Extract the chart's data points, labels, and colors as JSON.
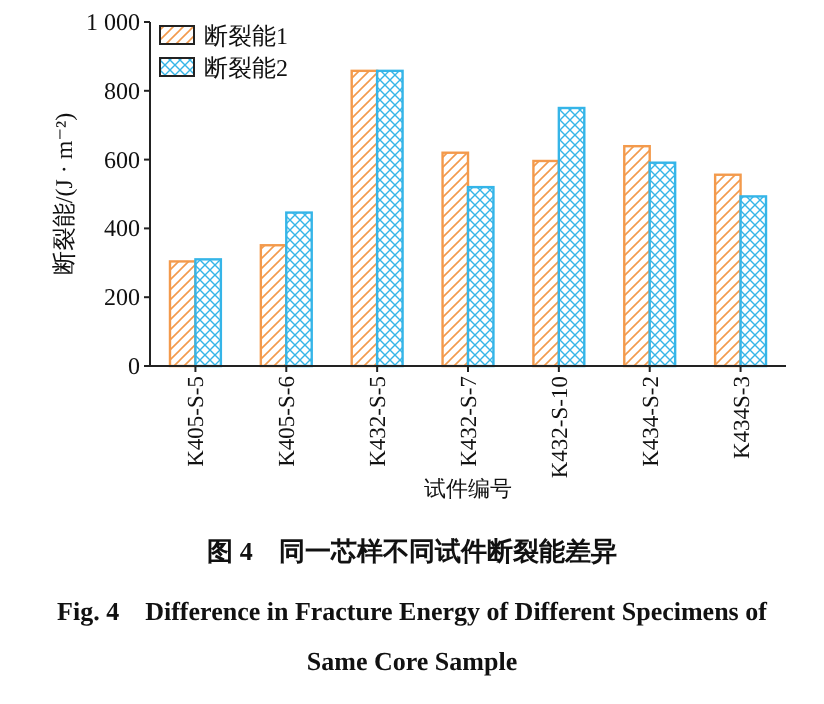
{
  "chart_data": {
    "type": "bar",
    "title": "图 4　同一芯样不同试件断裂能差异",
    "subtitle": "Fig. 4　Difference in Fracture Energy of Different Specimens of Same Core Sample",
    "xlabel": "试件编号",
    "ylabel": "断裂能/(J · m⁻²)",
    "categories": [
      "K405-S-5",
      "K405-S-6",
      "K432-S-5",
      "K432-S-7",
      "K432-S-10",
      "K434-S-2",
      "K434S-3"
    ],
    "series": [
      {
        "name": "断裂能1",
        "color": "#f39a4c",
        "values": [
          304,
          351,
          858,
          620,
          596,
          639,
          556
        ]
      },
      {
        "name": "断裂能2",
        "color": "#35b5e8",
        "values": [
          310,
          446,
          858,
          520,
          750,
          591,
          493
        ]
      }
    ],
    "ylim": [
      0,
      1000
    ],
    "yticks": [
      0,
      200,
      400,
      600,
      800,
      {
        "value": 1000,
        "label": "1 000"
      }
    ],
    "legend": "top left"
  }
}
